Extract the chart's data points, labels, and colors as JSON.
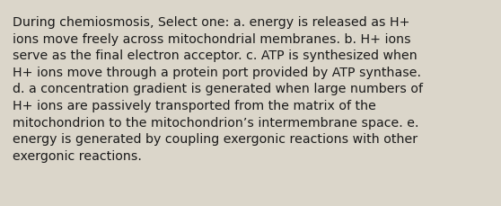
{
  "text": "During chemiosmosis, Select one: a. energy is released as H+\nions move freely across mitochondrial membranes. b. H+ ions\nserve as the final electron acceptor. c. ATP is synthesized when\nH+ ions move through a protein port provided by ATP synthase.\nd. a concentration gradient is generated when large numbers of\nH+ ions are passively transported from the matrix of the\nmitochondrion to the mitochondrion’s intermembrane space. e.\nenergy is generated by coupling exergonic reactions with other\nexergonic reactions.",
  "background_color": "#dbd6ca",
  "text_color": "#1a1a1a",
  "font_size": 10.2,
  "fig_width": 5.58,
  "fig_height": 2.3
}
